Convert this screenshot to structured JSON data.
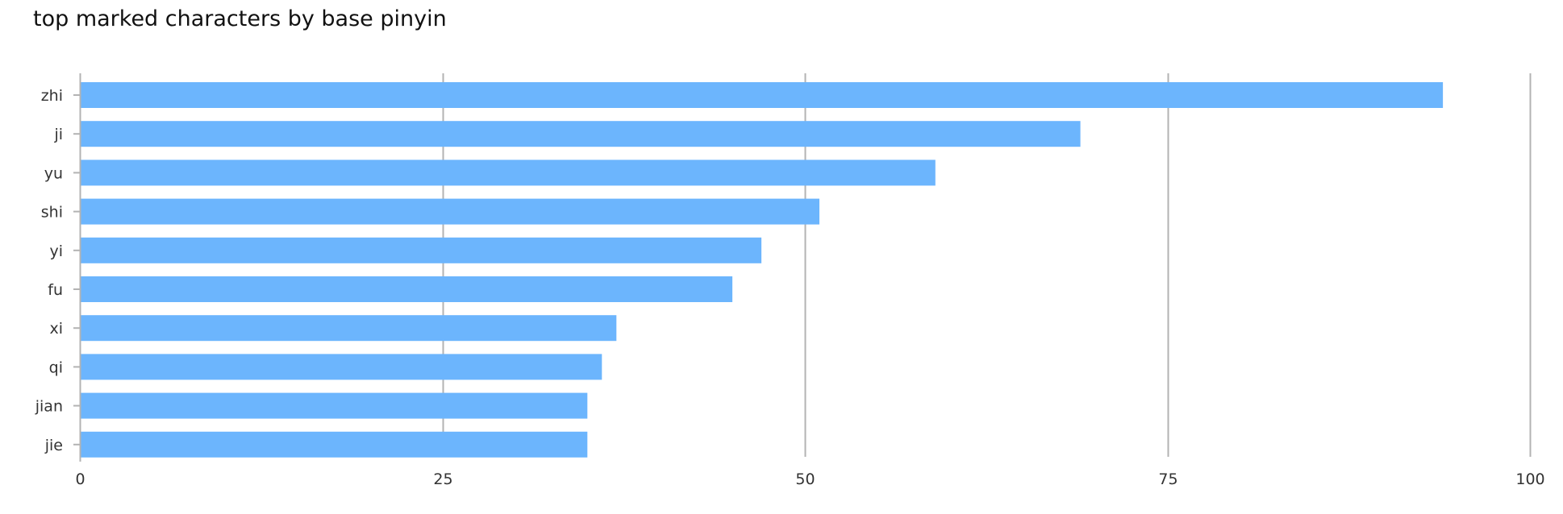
{
  "chart_data": {
    "type": "bar",
    "orientation": "horizontal",
    "title": "top marked characters by base pinyin",
    "xlabel": "",
    "ylabel": "",
    "categories": [
      "zhi",
      "ji",
      "yu",
      "shi",
      "yi",
      "fu",
      "xi",
      "qi",
      "jian",
      "jie"
    ],
    "values": [
      94,
      69,
      59,
      51,
      47,
      45,
      37,
      36,
      35,
      35
    ],
    "xlim": [
      0,
      100
    ],
    "xticks": [
      0,
      25,
      50,
      75,
      100
    ],
    "xtick_labels": [
      "0",
      "25",
      "50",
      "75",
      "100"
    ],
    "grid": true,
    "bar_color": "#6cb5fd",
    "grid_color": "#b3b3b3"
  }
}
